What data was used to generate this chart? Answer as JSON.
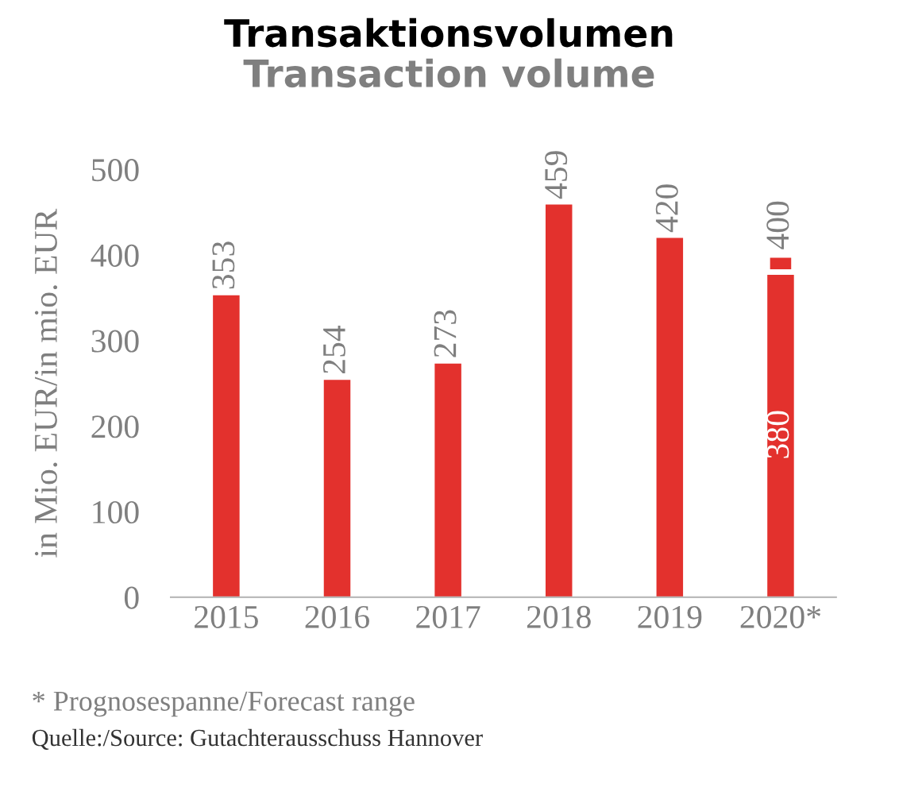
{
  "chart_data": {
    "type": "bar",
    "title": "Transaktionsvolumen",
    "subtitle": "Transaction volume",
    "ylabel": "in Mio. EUR/in mio. EUR",
    "categories": [
      "2015",
      "2016",
      "2017",
      "2018",
      "2019",
      "2020*"
    ],
    "stacked": true,
    "series": [
      {
        "color": "#e3312d",
        "values": [
          353,
          254,
          273,
          459,
          420,
          380
        ],
        "value_labels": [
          "353",
          "254",
          "273",
          "459",
          "420",
          "380"
        ]
      },
      {
        "color": "#e3312d",
        "values": [
          null,
          null,
          null,
          null,
          null,
          20
        ]
      }
    ],
    "ylim": [
      0,
      500
    ],
    "yticks": [
      0,
      100,
      200,
      300,
      400,
      500
    ],
    "grid": false,
    "legend": false,
    "annotations": [
      {
        "text": "400",
        "x": "2020*",
        "y": 400
      },
      "* Prognosespanne/Forecast range",
      "Quelle:/Source: Gutachterausschuss Hannover"
    ]
  }
}
